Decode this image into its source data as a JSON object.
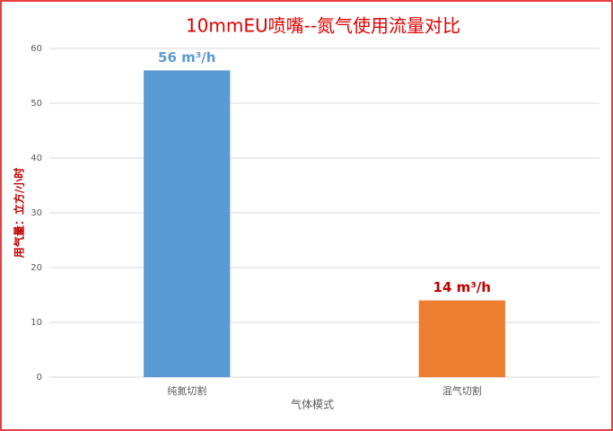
{
  "chart_data": {
    "type": "bar",
    "title": "10mmEU喷嘴--氮气使用流量对比",
    "categories": [
      "纯氮切割",
      "混气切割"
    ],
    "values": [
      56,
      14
    ],
    "value_labels": [
      "56 m³/h",
      "14 m³/h"
    ],
    "colors": [
      "#5b9bd5",
      "#ed7d31"
    ],
    "value_label_colors": [
      "#5b9bd5",
      "#c00000"
    ],
    "x_label": "气体模式",
    "y_label": "用气量：立方/小时",
    "ylim": [
      0,
      60
    ],
    "yticks": [
      0,
      10,
      20,
      30,
      40,
      50,
      60
    ],
    "grid": true
  }
}
